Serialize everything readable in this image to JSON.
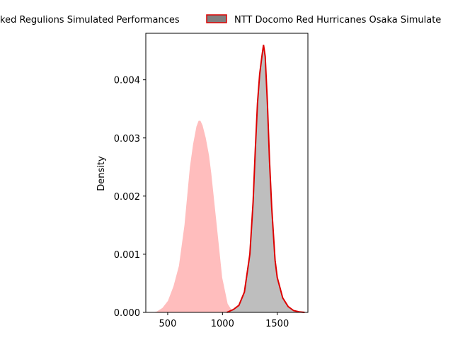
{
  "chart_data": {
    "type": "area",
    "title": "",
    "xlabel": "",
    "ylabel": "Density",
    "xlim": [
      300,
      1780
    ],
    "ylim": [
      0,
      0.0048
    ],
    "xticks": [
      500,
      1000,
      1500
    ],
    "yticks": [
      0.0,
      0.001,
      0.002,
      0.003,
      0.004
    ],
    "xtick_labels": [
      "500",
      "1000",
      "1500"
    ],
    "ytick_labels": [
      "0.000",
      "0.001",
      "0.002",
      "0.003",
      "0.004"
    ],
    "grid": false,
    "legend": "top, outside plot area",
    "series": [
      {
        "name": "Red Regulions Simulated Performances",
        "legend_label": "ked Regulions Simulated Performances",
        "fill_color": "#ffbdbd",
        "edge_color": "#ffffff",
        "x": [
          360,
          400,
          450,
          500,
          550,
          600,
          650,
          700,
          730,
          760,
          780,
          800,
          820,
          850,
          880,
          900,
          950,
          1000,
          1050,
          1100
        ],
        "y": [
          0.0,
          2e-05,
          8e-05,
          0.0002,
          0.00045,
          0.0008,
          0.0015,
          0.0025,
          0.0029,
          0.0032,
          0.0033,
          0.0033,
          0.00322,
          0.003,
          0.0027,
          0.0024,
          0.0015,
          0.0006,
          0.00015,
          0.0
        ]
      },
      {
        "name": "NTT Docomo Red Hurricanes Osaka Simulated Performances",
        "legend_label": "NTT Docomo Red Hurricanes Osaka Simulate",
        "fill_color": "#bebebe",
        "edge_color": "#dd0000",
        "x": [
          1040,
          1100,
          1150,
          1200,
          1250,
          1280,
          1300,
          1320,
          1340,
          1360,
          1375,
          1390,
          1410,
          1430,
          1450,
          1480,
          1500,
          1550,
          1600,
          1650,
          1700,
          1750
        ],
        "y": [
          0.0,
          5e-05,
          0.00012,
          0.00035,
          0.001,
          0.0019,
          0.0028,
          0.0036,
          0.0041,
          0.0044,
          0.0046,
          0.0044,
          0.0036,
          0.0026,
          0.0018,
          0.0009,
          0.0006,
          0.00025,
          0.0001,
          3e-05,
          1e-05,
          0.0
        ]
      }
    ]
  }
}
